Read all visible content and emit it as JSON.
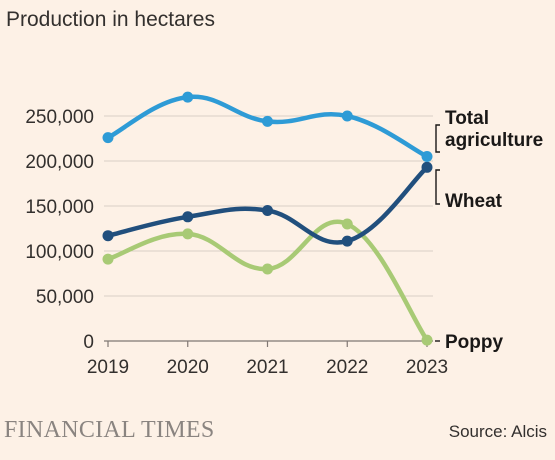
{
  "chart_data": {
    "type": "line",
    "title": "Production in hectares",
    "x": [
      "2019",
      "2020",
      "2021",
      "2022",
      "2023"
    ],
    "ylim": [
      0,
      250000
    ],
    "yticks": [
      0,
      50000,
      100000,
      150000,
      200000,
      250000
    ],
    "ytick_labels": [
      "0",
      "50,000",
      "100,000",
      "150,000",
      "200,000",
      "250,000"
    ],
    "grid": true,
    "series": [
      {
        "name": "Total agriculture",
        "label_lines": [
          "Total",
          "agriculture"
        ],
        "color": "#2e9bd6",
        "values": [
          226000,
          271000,
          244000,
          250000,
          205000
        ]
      },
      {
        "name": "Wheat",
        "label_lines": [
          "Wheat"
        ],
        "color": "#214f7d",
        "values": [
          117000,
          138000,
          145000,
          111000,
          193000
        ]
      },
      {
        "name": "Poppy",
        "label_lines": [
          "Poppy"
        ],
        "color": "#a8ca75",
        "values": [
          91000,
          119000,
          80000,
          130000,
          1000
        ]
      }
    ],
    "brand": "FINANCIAL TIMES",
    "source": "Source: Alcis"
  }
}
